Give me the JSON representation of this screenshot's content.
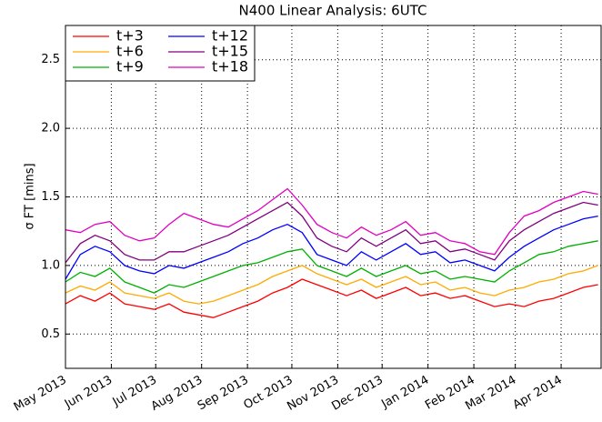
{
  "chart_data": {
    "type": "line",
    "title": "N400 Linear Analysis:  6UTC",
    "y_label": "σ FT [mins]",
    "x": [
      0,
      10,
      20,
      30,
      40,
      50,
      60,
      70,
      80,
      90,
      100,
      110,
      120,
      130,
      140,
      150,
      160,
      170,
      180,
      190,
      200,
      210,
      220,
      230,
      240,
      250,
      260,
      270,
      280,
      290,
      300,
      310,
      320,
      330,
      340,
      350,
      360
    ],
    "xlim": [
      0,
      362
    ],
    "xticks": [
      {
        "value": 0,
        "label": "May 2013"
      },
      {
        "value": 31,
        "label": "Jun 2013"
      },
      {
        "value": 61,
        "label": "Jul 2013"
      },
      {
        "value": 92,
        "label": "Aug 2013"
      },
      {
        "value": 123,
        "label": "Sep 2013"
      },
      {
        "value": 153,
        "label": "Oct 2013"
      },
      {
        "value": 184,
        "label": "Nov 2013"
      },
      {
        "value": 214,
        "label": "Dec 2013"
      },
      {
        "value": 245,
        "label": "Jan 2014"
      },
      {
        "value": 276,
        "label": "Feb 2014"
      },
      {
        "value": 304,
        "label": "Mar 2014"
      },
      {
        "value": 335,
        "label": "Apr 2014"
      }
    ],
    "ylim": [
      0.25,
      2.75
    ],
    "yticks": [
      0.5,
      {
        "value": 1.0,
        "label": "1.0"
      },
      1.5,
      {
        "value": 2.0,
        "label": "2.0"
      },
      2.5
    ],
    "grid": true,
    "legend": "upper left",
    "series": [
      {
        "name": "t+3",
        "color": "#ff0000",
        "values": [
          0.72,
          0.78,
          0.74,
          0.8,
          0.72,
          0.7,
          0.68,
          0.72,
          0.66,
          0.64,
          0.62,
          0.66,
          0.7,
          0.74,
          0.8,
          0.84,
          0.9,
          0.86,
          0.82,
          0.78,
          0.82,
          0.76,
          0.8,
          0.84,
          0.78,
          0.8,
          0.76,
          0.78,
          0.74,
          0.7,
          0.72,
          0.7,
          0.74,
          0.76,
          0.8,
          0.84,
          0.86
        ]
      },
      {
        "name": "t+6",
        "color": "#ffaa00",
        "values": [
          0.8,
          0.85,
          0.82,
          0.88,
          0.8,
          0.78,
          0.76,
          0.8,
          0.74,
          0.72,
          0.74,
          0.78,
          0.82,
          0.86,
          0.92,
          0.96,
          1.0,
          0.94,
          0.9,
          0.86,
          0.9,
          0.84,
          0.88,
          0.92,
          0.86,
          0.88,
          0.82,
          0.84,
          0.8,
          0.78,
          0.82,
          0.84,
          0.88,
          0.9,
          0.94,
          0.96,
          1.0
        ]
      },
      {
        "name": "t+9",
        "color": "#00b000",
        "values": [
          0.88,
          0.95,
          0.92,
          0.98,
          0.88,
          0.84,
          0.8,
          0.86,
          0.84,
          0.88,
          0.92,
          0.96,
          1.0,
          1.02,
          1.06,
          1.1,
          1.12,
          1.0,
          0.96,
          0.92,
          0.98,
          0.92,
          0.96,
          1.0,
          0.94,
          0.96,
          0.9,
          0.92,
          0.9,
          0.88,
          0.96,
          1.02,
          1.08,
          1.1,
          1.14,
          1.16,
          1.18
        ]
      },
      {
        "name": "t+12",
        "color": "#0000ff",
        "values": [
          0.9,
          1.08,
          1.14,
          1.1,
          1.0,
          0.96,
          0.94,
          1.0,
          0.98,
          1.02,
          1.06,
          1.1,
          1.16,
          1.2,
          1.26,
          1.3,
          1.24,
          1.08,
          1.04,
          1.0,
          1.1,
          1.04,
          1.1,
          1.16,
          1.08,
          1.1,
          1.02,
          1.04,
          1.0,
          0.96,
          1.06,
          1.14,
          1.2,
          1.26,
          1.3,
          1.34,
          1.36
        ]
      },
      {
        "name": "t+15",
        "color": "#800080",
        "values": [
          1.02,
          1.16,
          1.22,
          1.18,
          1.08,
          1.04,
          1.04,
          1.1,
          1.1,
          1.14,
          1.18,
          1.22,
          1.28,
          1.34,
          1.4,
          1.46,
          1.36,
          1.2,
          1.14,
          1.1,
          1.2,
          1.14,
          1.2,
          1.26,
          1.16,
          1.18,
          1.1,
          1.12,
          1.08,
          1.04,
          1.18,
          1.26,
          1.32,
          1.38,
          1.42,
          1.46,
          1.44
        ]
      },
      {
        "name": "t+18",
        "color": "#e000c0",
        "values": [
          1.26,
          1.24,
          1.3,
          1.32,
          1.22,
          1.18,
          1.2,
          1.3,
          1.38,
          1.34,
          1.3,
          1.28,
          1.34,
          1.4,
          1.48,
          1.56,
          1.44,
          1.3,
          1.24,
          1.2,
          1.28,
          1.22,
          1.26,
          1.32,
          1.22,
          1.24,
          1.18,
          1.16,
          1.1,
          1.08,
          1.24,
          1.36,
          1.4,
          1.46,
          1.5,
          1.54,
          1.52
        ]
      }
    ]
  }
}
